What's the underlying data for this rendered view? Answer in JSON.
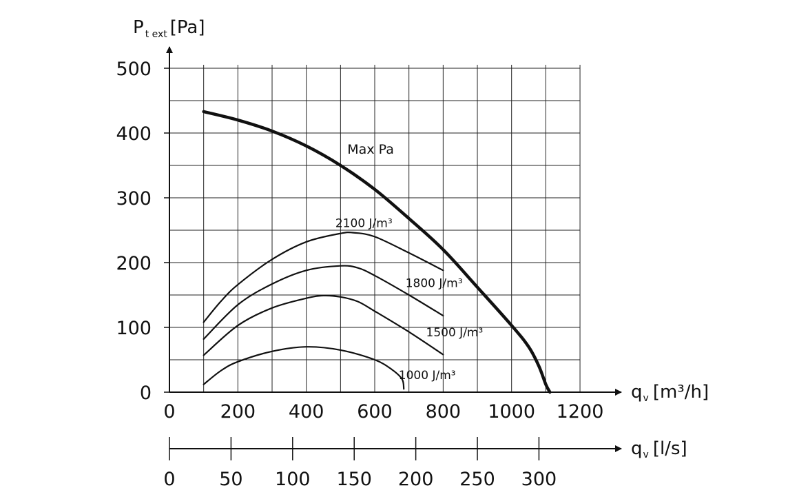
{
  "chart_data": {
    "type": "line",
    "y_axis": {
      "label_main": "P",
      "label_sub": "t ext",
      "label_unit": "[Pa]",
      "ticks": [
        "0",
        "100",
        "200",
        "300",
        "400",
        "500"
      ],
      "range": [
        0,
        500
      ]
    },
    "x_axis_primary": {
      "label_main": "q",
      "label_sub": "v",
      "label_unit": "[m³/h]",
      "ticks": [
        "0",
        "200",
        "400",
        "600",
        "800",
        "1000",
        "1200"
      ],
      "range": [
        0,
        1200
      ]
    },
    "x_axis_secondary": {
      "label_main": "q",
      "label_sub": "v",
      "label_unit": "[l/s]",
      "ticks": [
        "0",
        "50",
        "100",
        "150",
        "200",
        "250",
        "300"
      ],
      "tick_values": [
        0,
        50,
        100,
        150,
        200,
        250,
        300
      ],
      "ls_to_m3h": 3.6
    },
    "grid": true,
    "series": [
      {
        "name": "Max Pa",
        "bold": true,
        "points": [
          [
            100,
            433
          ],
          [
            200,
            420
          ],
          [
            300,
            403
          ],
          [
            400,
            380
          ],
          [
            500,
            350
          ],
          [
            600,
            313
          ],
          [
            700,
            268
          ],
          [
            800,
            220
          ],
          [
            900,
            162
          ],
          [
            1000,
            103
          ],
          [
            1050,
            70
          ],
          [
            1080,
            40
          ],
          [
            1100,
            12
          ],
          [
            1112,
            0
          ]
        ]
      },
      {
        "name": "2100 J/m³",
        "bold": false,
        "points": [
          [
            100,
            108
          ],
          [
            150,
            140
          ],
          [
            200,
            166
          ],
          [
            300,
            205
          ],
          [
            400,
            232
          ],
          [
            500,
            245
          ],
          [
            540,
            246
          ],
          [
            600,
            240
          ],
          [
            700,
            215
          ],
          [
            800,
            188
          ]
        ]
      },
      {
        "name": "1800 J/m³",
        "bold": false,
        "points": [
          [
            100,
            82
          ],
          [
            200,
            135
          ],
          [
            300,
            167
          ],
          [
            400,
            188
          ],
          [
            500,
            195
          ],
          [
            550,
            192
          ],
          [
            600,
            180
          ],
          [
            700,
            150
          ],
          [
            800,
            118
          ]
        ]
      },
      {
        "name": "1500 J/m³",
        "bold": false,
        "points": [
          [
            100,
            57
          ],
          [
            200,
            103
          ],
          [
            300,
            130
          ],
          [
            400,
            145
          ],
          [
            450,
            149
          ],
          [
            500,
            147
          ],
          [
            550,
            140
          ],
          [
            600,
            125
          ],
          [
            700,
            93
          ],
          [
            800,
            58
          ]
        ]
      },
      {
        "name": "1000 J/m³",
        "bold": false,
        "points": [
          [
            100,
            12
          ],
          [
            150,
            33
          ],
          [
            200,
            47
          ],
          [
            300,
            63
          ],
          [
            400,
            70
          ],
          [
            500,
            65
          ],
          [
            600,
            50
          ],
          [
            650,
            35
          ],
          [
            680,
            20
          ],
          [
            685,
            5
          ]
        ]
      }
    ],
    "labels": [
      {
        "text": "Max Pa",
        "x": 520,
        "y": 368,
        "class": "max-label"
      },
      {
        "text": "2100 J/m³",
        "x": 485,
        "y": 255,
        "class": "curve-label"
      },
      {
        "text": "1800 J/m³",
        "x": 690,
        "y": 162,
        "class": "curve-label"
      },
      {
        "text": "1500 J/m³",
        "x": 750,
        "y": 86,
        "class": "curve-label"
      },
      {
        "text": "1000 J/m³",
        "x": 670,
        "y": 20,
        "class": "curve-label"
      }
    ]
  }
}
